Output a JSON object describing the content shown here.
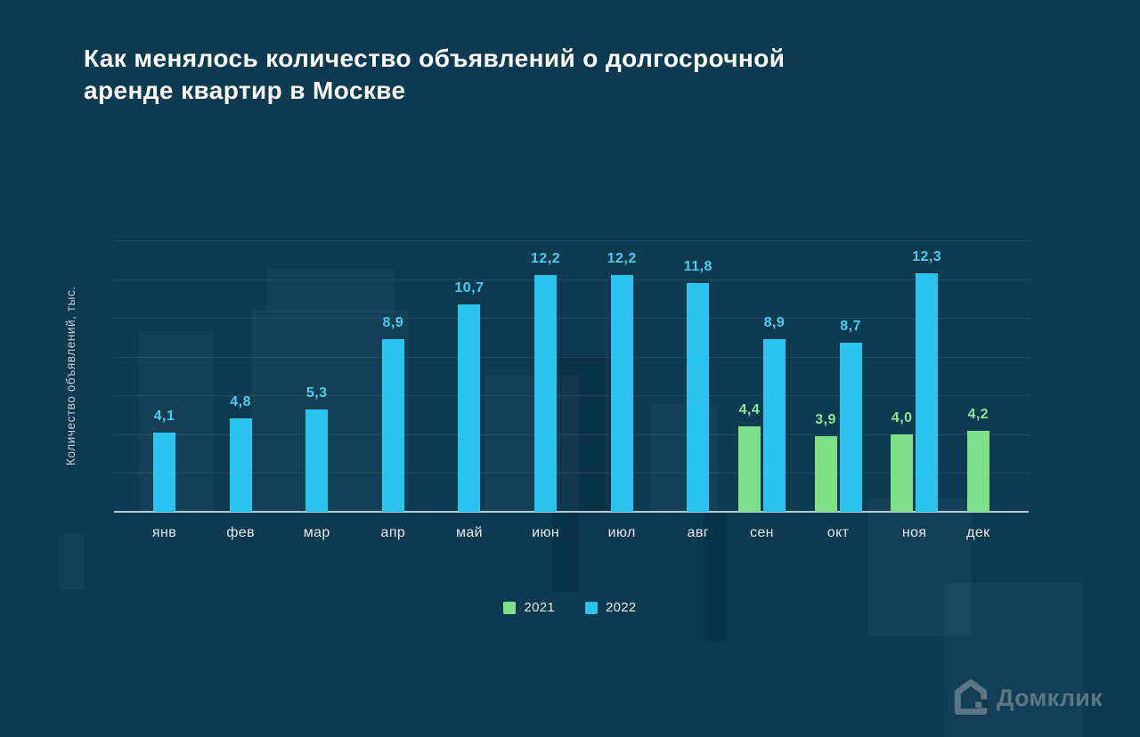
{
  "header": {
    "title": "Как менялось количество объявлений о долгосрочной\nаренде квартир в Москве"
  },
  "chart_data": {
    "type": "bar",
    "title": "Как менялось количество объявлений о долгосрочной аренде квартир в Москве",
    "xlabel": "",
    "ylabel": "Количество объявлений, тыс.",
    "categories": [
      "янв",
      "фев",
      "мар",
      "апр",
      "май",
      "июн",
      "июл",
      "авг",
      "сен",
      "окт",
      "ноя",
      "дек"
    ],
    "series": [
      {
        "name": "2021",
        "color": "#7FE08A",
        "label_color": "#8CE697",
        "values": [
          null,
          null,
          null,
          null,
          null,
          null,
          null,
          null,
          4.4,
          3.9,
          4.0,
          4.2
        ]
      },
      {
        "name": "2022",
        "color": "#29C4F0",
        "label_color": "#4ACBF2",
        "values": [
          4.1,
          4.8,
          5.3,
          8.9,
          10.7,
          12.2,
          12.2,
          11.8,
          8.9,
          8.7,
          12.3,
          null
        ]
      }
    ],
    "ylim": [
      0,
      14
    ],
    "grid_interval": 2,
    "grid": true,
    "legend_position": "bottom",
    "value_label_decimal_separator": ","
  },
  "colors": {
    "background": "#0C3A4F",
    "bar_2021": "#7FE08A",
    "bar_2022": "#29C4F0",
    "gridline": "rgba(255,255,255,0.10)",
    "axis_line": "rgba(213,227,233,0.85)",
    "logo": "#5C7683"
  },
  "logo": {
    "text": "Домклик"
  }
}
